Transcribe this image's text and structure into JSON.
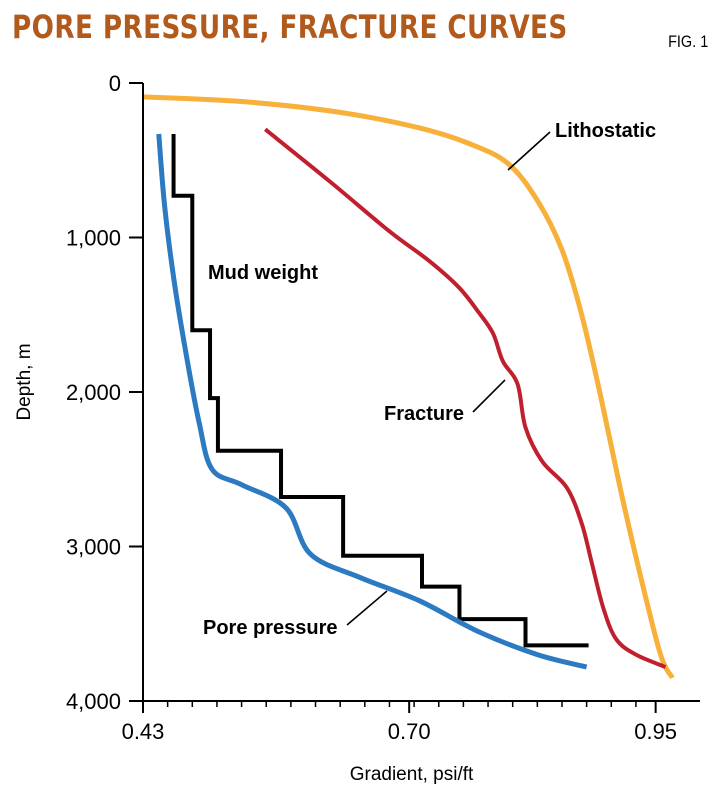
{
  "header": {
    "title": "PORE PRESSURE, FRACTURE CURVES",
    "fig_label": "FIG. 1"
  },
  "colors": {
    "title": "#b25a1c",
    "lithostatic": "#f7b13a",
    "fracture": "#c0202e",
    "mud_weight": "#000000",
    "pore_pressure": "#2b7ac2"
  },
  "chart_data": {
    "type": "line",
    "title": "PORE PRESSURE, FRACTURE CURVES",
    "xlabel": "Gradient, psi/ft",
    "ylabel": "Depth, m",
    "xlim": [
      0.43,
      0.995
    ],
    "ylim": [
      0,
      4000
    ],
    "y_inverted": true,
    "x_ticks": [
      0.43,
      0.7,
      0.95
    ],
    "x_tick_labels": [
      "0.43",
      "0.70",
      "0.95"
    ],
    "x_minor_ticks": [
      0.455,
      0.48,
      0.505,
      0.53,
      0.555,
      0.58,
      0.605,
      0.63,
      0.655,
      0.68,
      0.705,
      0.73,
      0.755,
      0.78,
      0.805,
      0.83,
      0.855,
      0.88,
      0.905,
      0.93
    ],
    "y_ticks": [
      0,
      1000,
      2000,
      3000,
      4000
    ],
    "y_tick_labels": [
      "0",
      "1,000",
      "2,000",
      "3,000",
      "4,000"
    ],
    "series": [
      {
        "name": "Lithostatic",
        "key": "lithostatic",
        "style": "smooth",
        "points": [
          [
            0.43,
            90
          ],
          [
            0.53,
            120
          ],
          [
            0.63,
            190
          ],
          [
            0.71,
            290
          ],
          [
            0.76,
            390
          ],
          [
            0.8,
            520
          ],
          [
            0.83,
            760
          ],
          [
            0.855,
            1080
          ],
          [
            0.875,
            1500
          ],
          [
            0.895,
            2050
          ],
          [
            0.915,
            2650
          ],
          [
            0.935,
            3200
          ],
          [
            0.955,
            3700
          ],
          [
            0.967,
            3850
          ]
        ]
      },
      {
        "name": "Fracture",
        "key": "fracture",
        "style": "smooth",
        "points": [
          [
            0.554,
            300
          ],
          [
            0.62,
            640
          ],
          [
            0.68,
            960
          ],
          [
            0.72,
            1150
          ],
          [
            0.75,
            1320
          ],
          [
            0.77,
            1480
          ],
          [
            0.785,
            1620
          ],
          [
            0.795,
            1800
          ],
          [
            0.81,
            1950
          ],
          [
            0.818,
            2230
          ],
          [
            0.835,
            2450
          ],
          [
            0.86,
            2620
          ],
          [
            0.875,
            2850
          ],
          [
            0.885,
            3100
          ],
          [
            0.897,
            3400
          ],
          [
            0.91,
            3600
          ],
          [
            0.93,
            3700
          ],
          [
            0.96,
            3780
          ]
        ]
      },
      {
        "name": "Mud weight",
        "key": "mud_weight",
        "style": "step",
        "points": [
          [
            0.461,
            330
          ],
          [
            0.461,
            730
          ],
          [
            0.48,
            730
          ],
          [
            0.48,
            1600
          ],
          [
            0.498,
            1600
          ],
          [
            0.498,
            2040
          ],
          [
            0.506,
            2040
          ],
          [
            0.506,
            2380
          ],
          [
            0.57,
            2380
          ],
          [
            0.57,
            2680
          ],
          [
            0.633,
            2680
          ],
          [
            0.633,
            3060
          ],
          [
            0.713,
            3060
          ],
          [
            0.713,
            3260
          ],
          [
            0.751,
            3260
          ],
          [
            0.751,
            3470
          ],
          [
            0.818,
            3470
          ],
          [
            0.818,
            3640
          ],
          [
            0.882,
            3640
          ]
        ]
      },
      {
        "name": "Pore pressure",
        "key": "pore_pressure",
        "style": "smooth",
        "points": [
          [
            0.446,
            330
          ],
          [
            0.452,
            800
          ],
          [
            0.462,
            1300
          ],
          [
            0.475,
            1800
          ],
          [
            0.487,
            2200
          ],
          [
            0.5,
            2500
          ],
          [
            0.53,
            2600
          ],
          [
            0.575,
            2750
          ],
          [
            0.6,
            3050
          ],
          [
            0.65,
            3200
          ],
          [
            0.71,
            3350
          ],
          [
            0.77,
            3550
          ],
          [
            0.83,
            3700
          ],
          [
            0.88,
            3780
          ]
        ]
      }
    ],
    "annotations": [
      {
        "key": "lithostatic",
        "text": "Lithostatic"
      },
      {
        "key": "fracture",
        "text": "Fracture"
      },
      {
        "key": "mud_weight",
        "text": "Mud weight"
      },
      {
        "key": "pore_pressure",
        "text": "Pore pressure"
      }
    ]
  }
}
